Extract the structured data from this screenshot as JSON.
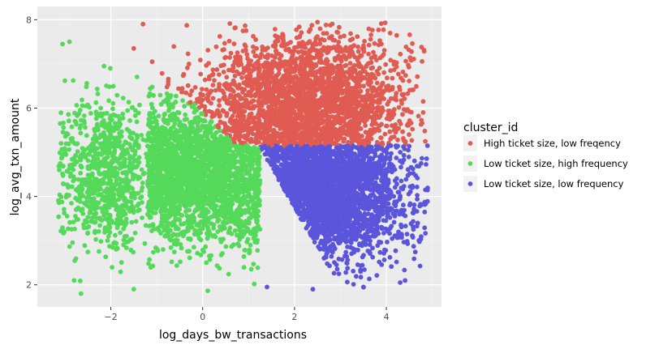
{
  "chart_data": {
    "type": "scatter",
    "xlabel": "log_days_bw_transactions",
    "ylabel": "log_avg_txn_amount",
    "xlim": [
      -3.6,
      5.2
    ],
    "ylim": [
      1.5,
      8.3
    ],
    "x_ticks": [
      -2,
      0,
      2,
      4
    ],
    "x_tick_labels": [
      "−2",
      "0",
      "2",
      "4"
    ],
    "y_ticks": [
      2,
      4,
      6,
      8
    ],
    "y_tick_labels": [
      "2",
      "4",
      "6",
      "8"
    ],
    "grid": true,
    "background": "#ebebeb",
    "legend": {
      "title": "cluster_id",
      "position": "right"
    },
    "series": [
      {
        "name": "High ticket size, low freqency",
        "color": "#e05b52",
        "point_count": 2600,
        "region": "log_avg_txn_amount above ~5.2 and log_days_bw_transactions above ~-1, upper right",
        "x_range": [
          -1.9,
          4.8
        ],
        "y_range": [
          5.1,
          7.95
        ],
        "outliers": [
          [
            -1.3,
            7.9
          ],
          [
            -1.5,
            7.35
          ],
          [
            -1.1,
            7.05
          ],
          [
            -0.75,
            6.6
          ],
          [
            0.7,
            7.05
          ],
          [
            -0.3,
            7.0
          ],
          [
            4.8,
            6.15
          ]
        ]
      },
      {
        "name": "Low ticket size, high frequency",
        "color": "#55d95a",
        "point_count": 3200,
        "region": "log_days_bw_transactions below ~1.2, lower left and centre left",
        "x_range": [
          -3.1,
          1.2
        ],
        "y_range": [
          1.8,
          7.5
        ],
        "outliers": [
          [
            -3.05,
            7.45
          ],
          [
            -2.9,
            7.5
          ],
          [
            -2.15,
            6.95
          ],
          [
            -2.65,
            1.8
          ],
          [
            -1.5,
            1.9
          ],
          [
            -2.8,
            2.1
          ]
        ]
      },
      {
        "name": "Low ticket size, low frequency",
        "color": "#5b55dc",
        "point_count": 2600,
        "region": "log_days_bw_transactions above ~1.2 and log_avg_txn_amount below ~5.2, lower right",
        "x_range": [
          1.0,
          4.9
        ],
        "y_range": [
          1.9,
          5.3
        ],
        "outliers": [
          [
            4.85,
            4.15
          ],
          [
            1.4,
            1.95
          ],
          [
            2.4,
            1.9
          ],
          [
            3.5,
            1.95
          ],
          [
            4.3,
            2.05
          ]
        ]
      }
    ]
  }
}
